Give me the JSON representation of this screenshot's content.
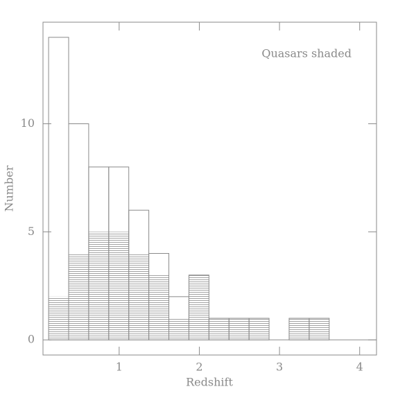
{
  "chart_data": {
    "type": "histogram",
    "xlabel": "Redshift",
    "ylabel": "Number",
    "annotation": "Quasars shaded",
    "bins": [
      0.12,
      0.37,
      0.62,
      0.87,
      1.12,
      1.37,
      1.62,
      1.87,
      2.12,
      2.37,
      2.62,
      2.87,
      3.12,
      3.37,
      3.62,
      3.87,
      4.12
    ],
    "series": [
      {
        "color": "#8a8a8a",
        "fill": "none",
        "values": [
          14,
          10,
          8,
          8,
          6,
          4,
          2,
          3,
          1,
          1,
          1,
          0,
          1,
          1,
          0,
          0
        ]
      },
      {
        "color": "#8a8a8a",
        "fill": "hatched",
        "values": [
          2,
          4,
          5,
          5,
          4,
          3,
          1,
          3,
          1,
          1,
          1,
          0,
          1,
          1,
          0,
          0
        ]
      }
    ],
    "xlim": [
      0.05,
      4.21
    ],
    "ylim": [
      -0.7,
      14.7
    ],
    "xticks": [
      1,
      2,
      3,
      4
    ],
    "yticks": [
      0,
      5,
      10
    ]
  }
}
